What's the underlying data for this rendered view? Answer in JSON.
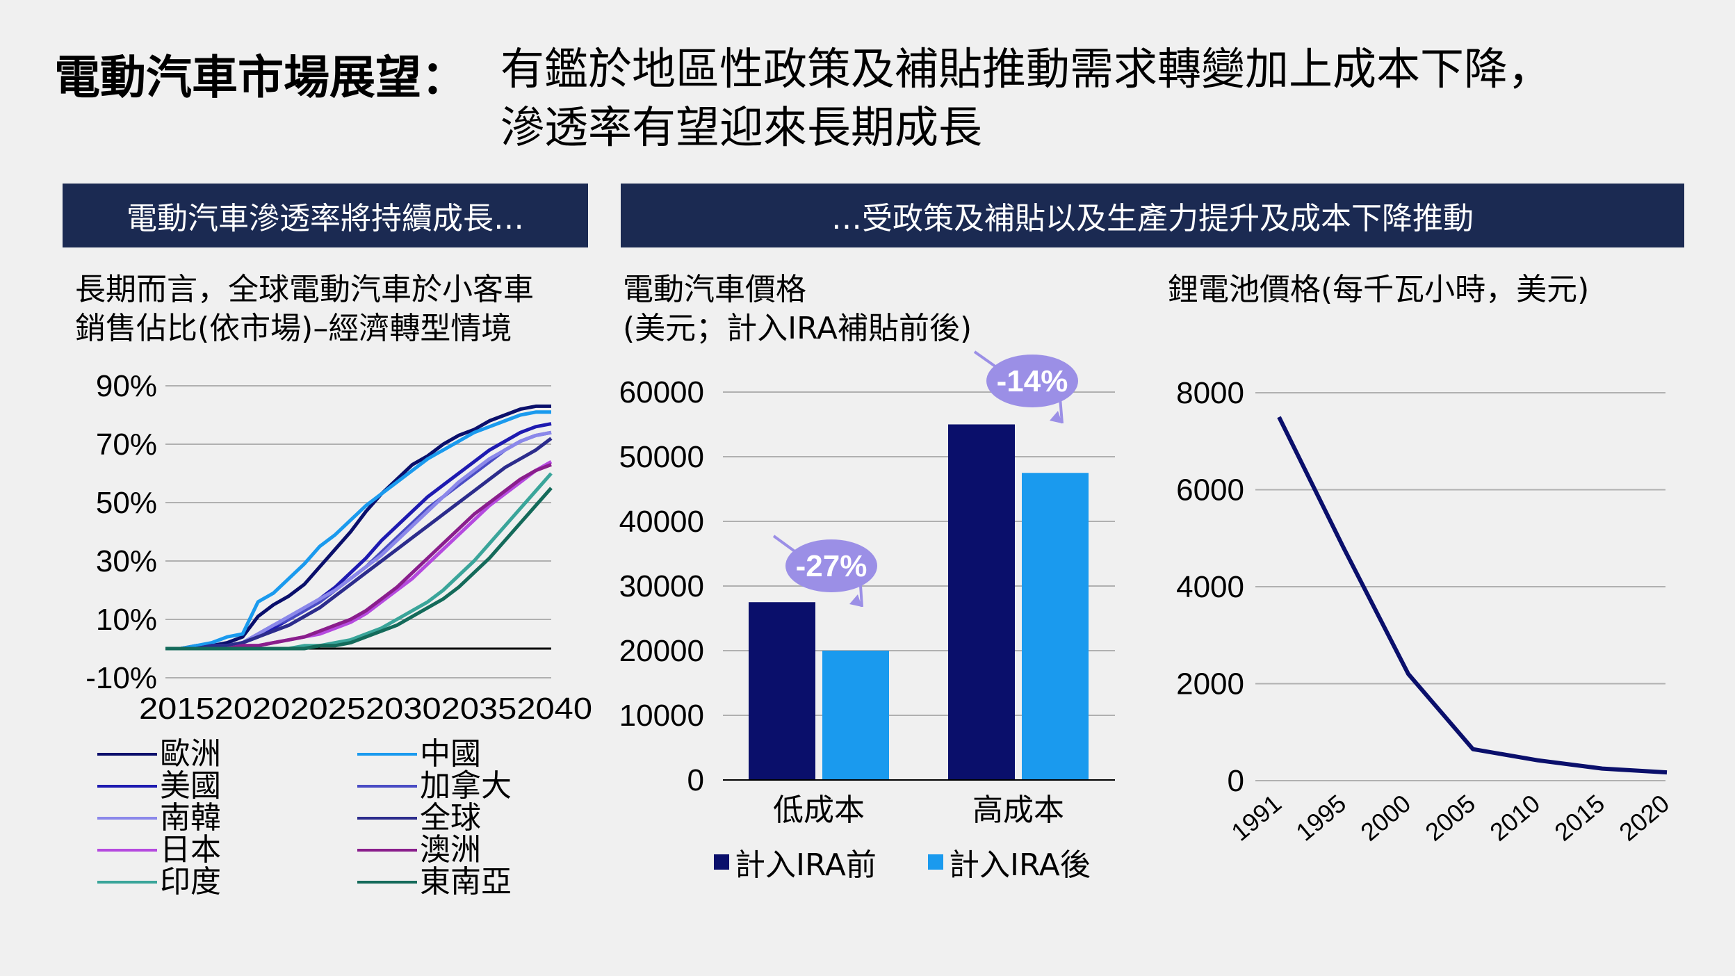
{
  "title": {
    "bold": "電動汽車市場展望：",
    "line1": "有鑑於地區性政策及補貼推動需求轉變加上成本下降，",
    "line2": "滲透率有望迎來長期成長"
  },
  "banners": {
    "left": "電動汽車滲透率將持續成長…",
    "right": "…受政策及補貼以及生產力提升及成本下降推動"
  },
  "colors": {
    "navy": "#0a0f6b",
    "light_blue": "#1a9aee",
    "grid": "#b0b0b0",
    "callout": "#9b8fe6",
    "banner": "#1b2a52"
  },
  "chart_data": [
    {
      "type": "line",
      "title_line1": "長期而言，全球電動汽車於小客車",
      "title_line2": "銷售佔比(依市場)–經濟轉型情境",
      "y_ticks": [
        "90%",
        "70%",
        "50%",
        "30%",
        "10%",
        "-10%"
      ],
      "ylim": [
        -10,
        90
      ],
      "x_tick_text": "2015202020252030203520402040",
      "x_tick_display": "20152020202520302035 2040",
      "x_ticks": [
        "2015",
        "2020",
        "2025",
        "2030",
        "2035",
        "2040"
      ],
      "xlim": [
        2015,
        2040
      ],
      "series": [
        {
          "name": "歐洲",
          "color": "#0a0f6b",
          "x": [
            2015,
            2016,
            2017,
            2018,
            2019,
            2020,
            2021,
            2022,
            2023,
            2024,
            2025,
            2026,
            2027,
            2028,
            2029,
            2030,
            2031,
            2032,
            2033,
            2034,
            2035,
            2036,
            2037,
            2038,
            2039,
            2040
          ],
          "y": [
            0,
            0,
            1,
            1,
            2,
            4,
            11,
            15,
            18,
            22,
            28,
            34,
            40,
            47,
            53,
            58,
            63,
            66,
            70,
            73,
            75,
            78,
            80,
            82,
            83,
            83
          ]
        },
        {
          "name": "中國",
          "color": "#1a9aee",
          "x": [
            2015,
            2016,
            2017,
            2018,
            2019,
            2020,
            2021,
            2022,
            2023,
            2024,
            2025,
            2026,
            2027,
            2028,
            2029,
            2030,
            2031,
            2032,
            2033,
            2034,
            2035,
            2036,
            2037,
            2038,
            2039,
            2040
          ],
          "y": [
            0,
            0,
            1,
            2,
            4,
            5,
            16,
            19,
            24,
            29,
            35,
            39,
            44,
            49,
            53,
            57,
            61,
            65,
            68,
            71,
            74,
            76,
            78,
            80,
            81,
            81
          ]
        },
        {
          "name": "美國",
          "color": "#1e1ab0",
          "x": [
            2015,
            2016,
            2017,
            2018,
            2019,
            2020,
            2021,
            2022,
            2023,
            2024,
            2025,
            2026,
            2027,
            2028,
            2029,
            2030,
            2031,
            2032,
            2033,
            2034,
            2035,
            2036,
            2037,
            2038,
            2039,
            2040
          ],
          "y": [
            0,
            0,
            0,
            1,
            1,
            2,
            4,
            7,
            10,
            13,
            17,
            21,
            26,
            31,
            37,
            42,
            47,
            52,
            56,
            60,
            64,
            68,
            71,
            74,
            76,
            77
          ]
        },
        {
          "name": "加拿大",
          "color": "#4a4cc4",
          "x": [
            2015,
            2016,
            2017,
            2018,
            2019,
            2020,
            2021,
            2022,
            2023,
            2024,
            2025,
            2026,
            2027,
            2028,
            2029,
            2030,
            2031,
            2032,
            2033,
            2034,
            2035,
            2036,
            2037,
            2038,
            2039,
            2040
          ],
          "y": [
            0,
            0,
            0,
            1,
            1,
            2,
            5,
            8,
            10,
            13,
            16,
            20,
            24,
            28,
            33,
            38,
            43,
            48,
            52,
            56,
            60,
            64,
            68,
            71,
            73,
            74
          ]
        },
        {
          "name": "南韓",
          "color": "#8b88ea",
          "x": [
            2015,
            2016,
            2017,
            2018,
            2019,
            2020,
            2021,
            2022,
            2023,
            2024,
            2025,
            2026,
            2027,
            2028,
            2029,
            2030,
            2031,
            2032,
            2033,
            2034,
            2035,
            2036,
            2037,
            2038,
            2039,
            2040
          ],
          "y": [
            0,
            0,
            0,
            0,
            1,
            2,
            5,
            8,
            11,
            14,
            17,
            20,
            24,
            28,
            32,
            37,
            42,
            47,
            52,
            57,
            61,
            65,
            68,
            71,
            73,
            74
          ]
        },
        {
          "name": "全球",
          "color": "#2c2c8c",
          "x": [
            2015,
            2016,
            2017,
            2018,
            2019,
            2020,
            2021,
            2022,
            2023,
            2024,
            2025,
            2026,
            2027,
            2028,
            2029,
            2030,
            2031,
            2032,
            2033,
            2034,
            2035,
            2036,
            2037,
            2038,
            2039,
            2040
          ],
          "y": [
            0,
            0,
            0,
            1,
            1,
            2,
            4,
            6,
            8,
            11,
            14,
            18,
            22,
            26,
            30,
            34,
            38,
            42,
            46,
            50,
            54,
            58,
            62,
            65,
            68,
            72
          ]
        },
        {
          "name": "日本",
          "color": "#b54adf",
          "x": [
            2015,
            2016,
            2017,
            2018,
            2019,
            2020,
            2021,
            2022,
            2023,
            2024,
            2025,
            2026,
            2027,
            2028,
            2029,
            2030,
            2031,
            2032,
            2033,
            2034,
            2035,
            2036,
            2037,
            2038,
            2039,
            2040
          ],
          "y": [
            0,
            0,
            0,
            0,
            0,
            1,
            1,
            2,
            3,
            4,
            5,
            7,
            9,
            12,
            16,
            20,
            24,
            29,
            34,
            39,
            44,
            49,
            53,
            57,
            61,
            64
          ]
        },
        {
          "name": "澳洲",
          "color": "#8a1e8c",
          "x": [
            2015,
            2016,
            2017,
            2018,
            2019,
            2020,
            2021,
            2022,
            2023,
            2024,
            2025,
            2026,
            2027,
            2028,
            2029,
            2030,
            2031,
            2032,
            2033,
            2034,
            2035,
            2036,
            2037,
            2038,
            2039,
            2040
          ],
          "y": [
            0,
            0,
            0,
            0,
            0,
            1,
            1,
            2,
            3,
            4,
            6,
            8,
            10,
            13,
            17,
            21,
            26,
            31,
            36,
            41,
            46,
            50,
            54,
            58,
            61,
            63
          ]
        },
        {
          "name": "印度",
          "color": "#3aa59a",
          "x": [
            2015,
            2016,
            2017,
            2018,
            2019,
            2020,
            2021,
            2022,
            2023,
            2024,
            2025,
            2026,
            2027,
            2028,
            2029,
            2030,
            2031,
            2032,
            2033,
            2034,
            2035,
            2036,
            2037,
            2038,
            2039,
            2040
          ],
          "y": [
            0,
            0,
            0,
            0,
            0,
            0,
            0,
            0,
            0,
            1,
            1,
            2,
            3,
            5,
            7,
            10,
            13,
            16,
            20,
            25,
            30,
            36,
            42,
            48,
            54,
            60
          ]
        },
        {
          "name": "東南亞",
          "color": "#146a5a",
          "x": [
            2015,
            2016,
            2017,
            2018,
            2019,
            2020,
            2021,
            2022,
            2023,
            2024,
            2025,
            2026,
            2027,
            2028,
            2029,
            2030,
            2031,
            2032,
            2033,
            2034,
            2035,
            2036,
            2037,
            2038,
            2039,
            2040
          ],
          "y": [
            0,
            0,
            0,
            0,
            0,
            0,
            0,
            0,
            0,
            0,
            1,
            1,
            2,
            4,
            6,
            8,
            11,
            14,
            17,
            21,
            26,
            31,
            37,
            43,
            49,
            55
          ]
        }
      ],
      "legend_columns": [
        [
          "歐洲",
          "美國",
          "南韓",
          "日本",
          "印度"
        ],
        [
          "中國",
          "加拿大",
          "全球",
          "澳洲",
          "東南亞"
        ]
      ]
    },
    {
      "type": "bar",
      "title_line1": "電動汽車價格",
      "title_line2": "(美元；計入IRA補貼前後)",
      "categories": [
        "低成本",
        "高成本"
      ],
      "series": [
        {
          "name": "計入IRA前",
          "color": "#0a0f6b",
          "values": [
            27500,
            55000
          ]
        },
        {
          "name": "計入IRA後",
          "color": "#1a9aee",
          "values": [
            20000,
            47500
          ]
        }
      ],
      "y_ticks": [
        "60000",
        "50000",
        "40000",
        "30000",
        "20000",
        "10000",
        "0"
      ],
      "ylim": [
        0,
        60000
      ],
      "annotations": [
        "-27%",
        "-14%"
      ]
    },
    {
      "type": "line",
      "title": "鋰電池價格(每千瓦小時，美元)",
      "x": [
        "1991",
        "1995",
        "2000",
        "2005",
        "2010",
        "2015",
        "2020"
      ],
      "y": [
        7500,
        4800,
        2200,
        650,
        420,
        250,
        170
      ],
      "y_ticks": [
        "8000",
        "6000",
        "4000",
        "2000",
        "0"
      ],
      "ylim": [
        0,
        8000
      ],
      "color": "#0a0f6b"
    }
  ]
}
